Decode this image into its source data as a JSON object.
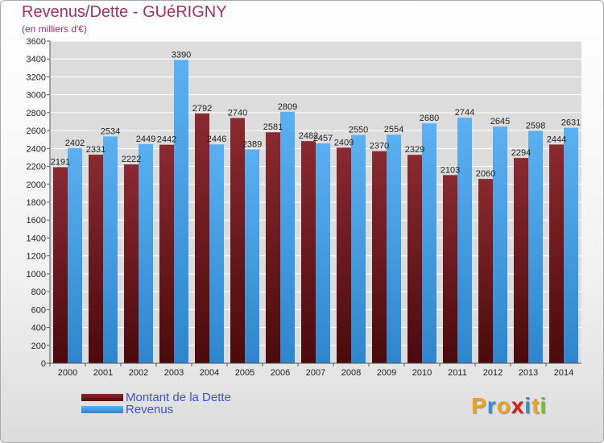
{
  "title": "Revenus/Dette - GUéRIGNY",
  "subtitle": "(en milliers d'€)",
  "logo_text": "Proxiti",
  "colors": {
    "dette": "#6e1a1e",
    "revenus": "#4aa3e8",
    "title": "#a0306a",
    "legend_text": "#3d4fd6"
  },
  "chart_data": {
    "type": "bar",
    "title": "Revenus/Dette - GUéRIGNY",
    "subtitle": "(en milliers d'€)",
    "categories": [
      "2000",
      "2001",
      "2002",
      "2003",
      "2004",
      "2005",
      "2006",
      "2007",
      "2008",
      "2009",
      "2010",
      "2011",
      "2012",
      "2013",
      "2014"
    ],
    "series": [
      {
        "name": "Montant de la Dette",
        "values": [
          2191,
          2331,
          2222,
          2442,
          2792,
          2740,
          2581,
          2482,
          2409,
          2370,
          2329,
          2103,
          2060,
          2294,
          2444
        ],
        "labels": [
          "2191",
          "2331",
          "2222",
          "2442",
          "2792",
          "2740",
          "2581",
          "2482",
          "2409",
          "2370",
          "2329",
          "2103",
          "2060",
          "2294",
          "2444"
        ]
      },
      {
        "name": "Revenus",
        "values": [
          2402,
          2534,
          2449,
          3390,
          2446,
          2389,
          2809,
          2457,
          2550,
          2554,
          2680,
          2744,
          2645,
          2598,
          2631
        ],
        "labels": [
          "2402",
          "2534",
          "2449",
          "3390",
          "2446",
          "2389",
          "2809",
          "2457",
          "2550",
          "2554",
          "2680",
          "2744",
          "2645",
          "2598",
          "2631"
        ]
      }
    ],
    "ylim": [
      0,
      3600
    ],
    "yticks": [
      0,
      200,
      400,
      600,
      800,
      1000,
      1200,
      1400,
      1600,
      1800,
      2000,
      2200,
      2400,
      2600,
      2800,
      3000,
      3200,
      3400,
      3600
    ],
    "grid": true,
    "legend_position": "bottom-left"
  }
}
